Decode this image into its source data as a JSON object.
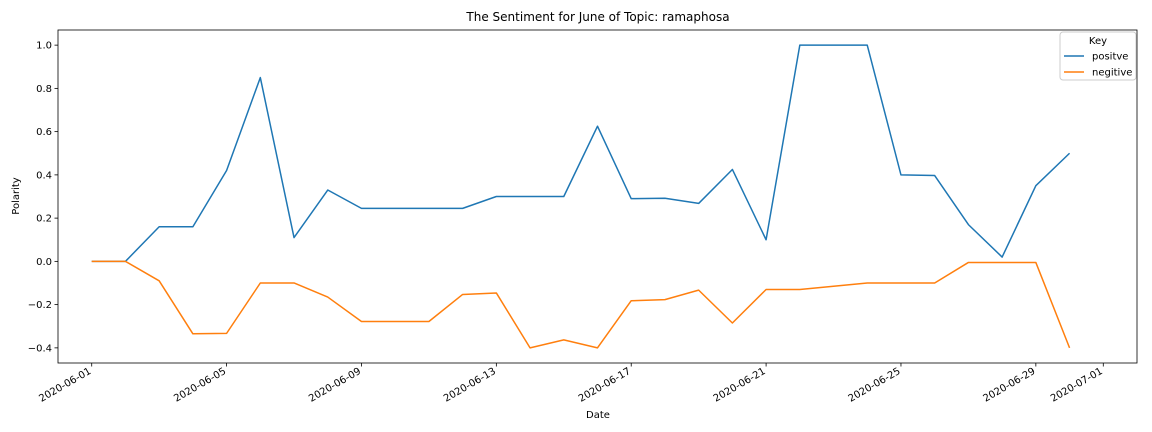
{
  "chart_data": {
    "type": "line",
    "title": "The Sentiment for June of Topic: ramaphosa",
    "xlabel": "Date",
    "ylabel": "Polarity",
    "x": [
      "2020-06-01",
      "2020-06-02",
      "2020-06-03",
      "2020-06-04",
      "2020-06-05",
      "2020-06-06",
      "2020-06-07",
      "2020-06-08",
      "2020-06-09",
      "2020-06-10",
      "2020-06-11",
      "2020-06-12",
      "2020-06-13",
      "2020-06-14",
      "2020-06-15",
      "2020-06-16",
      "2020-06-17",
      "2020-06-18",
      "2020-06-19",
      "2020-06-20",
      "2020-06-21",
      "2020-06-22",
      "2020-06-23",
      "2020-06-24",
      "2020-06-25",
      "2020-06-26",
      "2020-06-27",
      "2020-06-28",
      "2020-06-29",
      "2020-06-30"
    ],
    "series": [
      {
        "name": "positve",
        "color": "#1f77b4",
        "values": [
          0.0,
          0.0,
          0.16,
          0.16,
          0.42,
          0.85,
          0.11,
          0.33,
          0.245,
          0.245,
          0.245,
          0.245,
          0.3,
          0.3,
          0.3,
          0.625,
          0.29,
          0.292,
          0.268,
          0.425,
          0.1,
          1.0,
          1.0,
          1.0,
          0.4,
          0.397,
          0.17,
          0.02,
          0.35,
          0.5
        ]
      },
      {
        "name": "negitive",
        "color": "#ff7f0e",
        "values": [
          0.0,
          0.0,
          -0.09,
          -0.335,
          -0.333,
          -0.1,
          -0.1,
          -0.165,
          -0.278,
          -0.278,
          -0.278,
          -0.153,
          -0.146,
          -0.4,
          -0.363,
          -0.4,
          -0.182,
          -0.177,
          -0.133,
          -0.285,
          -0.13,
          -0.13,
          -0.115,
          -0.1,
          -0.1,
          -0.1,
          -0.005,
          -0.005,
          -0.005,
          -0.4
        ]
      }
    ],
    "xlim": [
      "2020-05-31",
      "2020-07-02"
    ],
    "ylim": [
      -0.47,
      1.07
    ],
    "x_ticks": [
      "2020-06-01",
      "2020-06-05",
      "2020-06-09",
      "2020-06-13",
      "2020-06-17",
      "2020-06-21",
      "2020-06-25",
      "2020-06-29",
      "2020-07-01"
    ],
    "y_ticks": [
      -0.4,
      -0.2,
      0.0,
      0.2,
      0.4,
      0.6,
      0.8,
      1.0
    ],
    "y_tick_labels": [
      "−0.4",
      "−0.2",
      "0.0",
      "0.2",
      "0.4",
      "0.6",
      "0.8",
      "1.0"
    ],
    "legend": {
      "title": "Key",
      "position": "top-right"
    },
    "grid": false
  }
}
